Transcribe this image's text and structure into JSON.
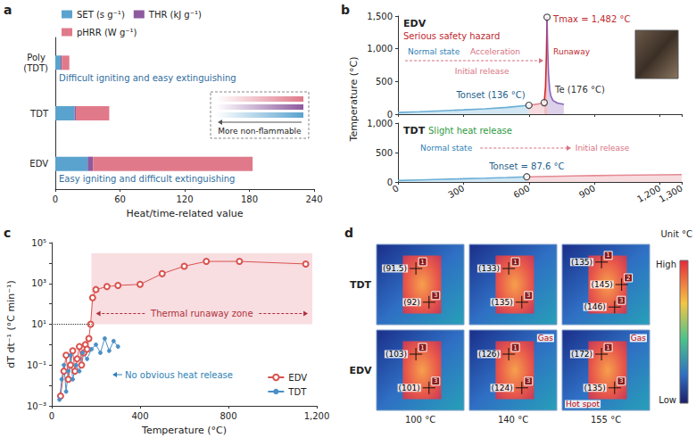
{
  "chart_data": [
    {
      "label": "a",
      "type": "bar",
      "orientation": "horizontal",
      "stacked": true,
      "categories": [
        "Poly (TDT)",
        "TDT",
        "EDV"
      ],
      "series": [
        {
          "name": "SET (s g⁻¹)",
          "color": "#5ba3cf",
          "values": [
            5,
            18,
            30
          ]
        },
        {
          "name": "THR (kJ g⁻¹)",
          "color": "#8e5a9e",
          "values": [
            1,
            1,
            5
          ]
        },
        {
          "name": "pHRR (W g⁻¹)",
          "color": "#e07a8a",
          "values": [
            7,
            31,
            148
          ]
        }
      ],
      "legend": "top",
      "xlabel": "Heat/time-related value",
      "xlim": [
        0,
        240
      ],
      "xticks": [
        0,
        60,
        120,
        180,
        240
      ],
      "annotations": [
        {
          "category": "Poly (TDT)",
          "text": "Difficult igniting and easy extinguishing"
        },
        {
          "category": "EDV",
          "text": "Easy igniting and difficult extinguishing"
        }
      ],
      "inset_text": "More non-flammable"
    },
    {
      "label": "b",
      "type": "line",
      "ylabel": "Temperature (°C)",
      "subplots": [
        {
          "title": "EDV",
          "subtitle": "Serious safety hazard",
          "tick_labels": "y",
          "xlim": [
            0,
            1300
          ],
          "xticks": [
            0,
            300,
            600,
            900,
            {
              "value": 1200,
              "label": "1,200"
            },
            {
              "value": 1300,
              "label": "1,300"
            }
          ],
          "ylim": [
            0,
            1500
          ],
          "yticks": [
            0,
            500,
            {
              "value": 1000,
              "label": "1,000"
            },
            {
              "value": 1500,
              "label": "1,500"
            }
          ],
          "series": [
            {
              "color": "#6aaed6",
              "x": [
                0,
                100,
                200,
                300,
                400,
                500,
                600
              ],
              "values": [
                25,
                38,
                52,
                66,
                82,
                104,
                136
              ]
            },
            {
              "color": "#e58a94",
              "x": [
                600,
                620,
                640,
                660,
                670
              ],
              "values": [
                136,
                145,
                155,
                166,
                176
              ]
            },
            {
              "color": "#d62728",
              "x": [
                670,
                676,
                680,
                683
              ],
              "values": [
                176,
                420,
                900,
                1482
              ]
            },
            {
              "color": "#8a63b8",
              "x": [
                683,
                686,
                690,
                695,
                700,
                710,
                730,
                760
              ],
              "values": [
                1482,
                1000,
                600,
                380,
                280,
                210,
                170,
                150
              ]
            }
          ],
          "points": [
            {
              "x": 600,
              "y": 136,
              "label": "Tonset (136 °C)"
            },
            {
              "x": 670,
              "y": 176,
              "label": "Te (176 °C)"
            },
            {
              "x": 683,
              "y": 1482,
              "label": "Tmax = 1,482 °C"
            }
          ],
          "stages": [
            "Normal state",
            "Acceleration",
            "Runaway"
          ],
          "stage_below": "Initial release"
        },
        {
          "title": "TDT",
          "subtitle": "Slight heat release",
          "xlim": [
            0,
            1300
          ],
          "xticks": [
            0,
            300,
            600,
            900,
            {
              "value": 1200,
              "label": "1,200"
            },
            {
              "value": 1300,
              "label": "1,300"
            }
          ],
          "ylim": [
            0,
            1000
          ],
          "yticks": [
            0,
            500,
            {
              "value": 1000,
              "label": "1,000"
            }
          ],
          "series": [
            {
              "color": "#6aaed6",
              "x": [
                0,
                100,
                200,
                300,
                400,
                500,
                590
              ],
              "values": [
                25,
                35,
                45,
                55,
                65,
                76,
                87.6
              ]
            },
            {
              "color": "#e58a94",
              "x": [
                590,
                700,
                800,
                900,
                1000,
                1100,
                1200,
                1300
              ],
              "values": [
                87.6,
                95,
                102,
                108,
                113,
                118,
                122,
                126
              ]
            }
          ],
          "points": [
            {
              "x": 590,
              "y": 87.6,
              "label": "Tonset = 87.6 °C"
            }
          ],
          "stages": [
            "Normal state",
            "Initial release"
          ]
        }
      ]
    },
    {
      "label": "c",
      "type": "line",
      "log": "y",
      "xlabel": "Temperature (°C)",
      "ylabel": "dT dt⁻¹ (°C min⁻¹)",
      "xlim": [
        0,
        1200
      ],
      "xticks": [
        0,
        400,
        800,
        {
          "value": 1200,
          "label": "1,200"
        }
      ],
      "ylim": [
        0.001,
        100000
      ],
      "yticks": [
        {
          "value": 0.001,
          "label": "10⁻³"
        },
        {
          "value": 0.1,
          "label": "10⁻¹"
        },
        {
          "value": 10,
          "label": "10¹"
        },
        {
          "value": 1000,
          "label": "10³"
        },
        {
          "value": 100000,
          "label": "10⁵"
        }
      ],
      "legend": "bottom-right",
      "series": [
        {
          "name": "EDV",
          "color": "#d9534f",
          "marker": "open circle",
          "x": [
            40,
            55,
            65,
            75,
            85,
            95,
            105,
            115,
            125,
            135,
            145,
            152,
            160,
            168,
            176,
            185,
            200,
            250,
            300,
            400,
            500,
            600,
            700,
            850,
            1150
          ],
          "values": [
            0.003,
            0.05,
            0.3,
            0.02,
            0.1,
            0.5,
            0.05,
            0.2,
            0.8,
            0.1,
            0.4,
            1,
            0.6,
            2,
            10,
            200,
            500,
            700,
            800,
            900,
            3000,
            7000,
            12000,
            12000,
            9000
          ]
        },
        {
          "name": "TDT",
          "color": "#4a8fc7",
          "marker": "circle",
          "x": [
            35,
            45,
            55,
            65,
            75,
            85,
            95,
            110,
            125,
            140,
            160,
            180,
            200,
            220,
            240,
            260,
            280,
            300
          ],
          "values": [
            0.002,
            0.02,
            0.1,
            0.005,
            0.05,
            0.3,
            0.02,
            0.1,
            0.05,
            0.4,
            0.2,
            0.6,
            1,
            0.4,
            2,
            0.5,
            1.5,
            0.8
          ]
        }
      ],
      "zone": {
        "text": "Thermal runaway zone",
        "x": [
          180,
          1180
        ],
        "y": [
          10,
          30000
        ]
      },
      "reference_line": {
        "y": 10
      },
      "annotations": [
        "No obvious heat release"
      ]
    }
  ],
  "panel_d": {
    "label": "d",
    "unit": "Unit °C",
    "scale_high": "High",
    "scale_low": "Low",
    "columns": [
      "100 °C",
      "140 °C",
      "155 °C"
    ],
    "rows": [
      {
        "name": "TDT",
        "cells": [
          {
            "spots": [
              {
                "id": "1",
                "temp": "(91.5)"
              },
              {
                "id": "3",
                "temp": "(92)"
              }
            ]
          },
          {
            "spots": [
              {
                "id": "1",
                "temp": "(133)"
              },
              {
                "id": "3",
                "temp": "(135)"
              }
            ]
          },
          {
            "spots": [
              {
                "id": "1",
                "temp": "(135)"
              },
              {
                "id": "2",
                "temp": "(145)"
              },
              {
                "id": "3",
                "temp": "(146)"
              }
            ]
          }
        ]
      },
      {
        "name": "EDV",
        "cells": [
          {
            "spots": [
              {
                "id": "1",
                "temp": "(103)"
              },
              {
                "id": "3",
                "temp": "(101)"
              }
            ]
          },
          {
            "spots": [
              {
                "id": "1",
                "temp": "(126)"
              },
              {
                "id": "3",
                "temp": "(124)"
              }
            ],
            "notes": [
              "Gas"
            ]
          },
          {
            "spots": [
              {
                "id": "1",
                "temp": "(172)"
              },
              {
                "id": "3",
                "temp": "(135)"
              }
            ],
            "notes": [
              "Gas",
              "Hot spot"
            ]
          }
        ]
      }
    ]
  }
}
